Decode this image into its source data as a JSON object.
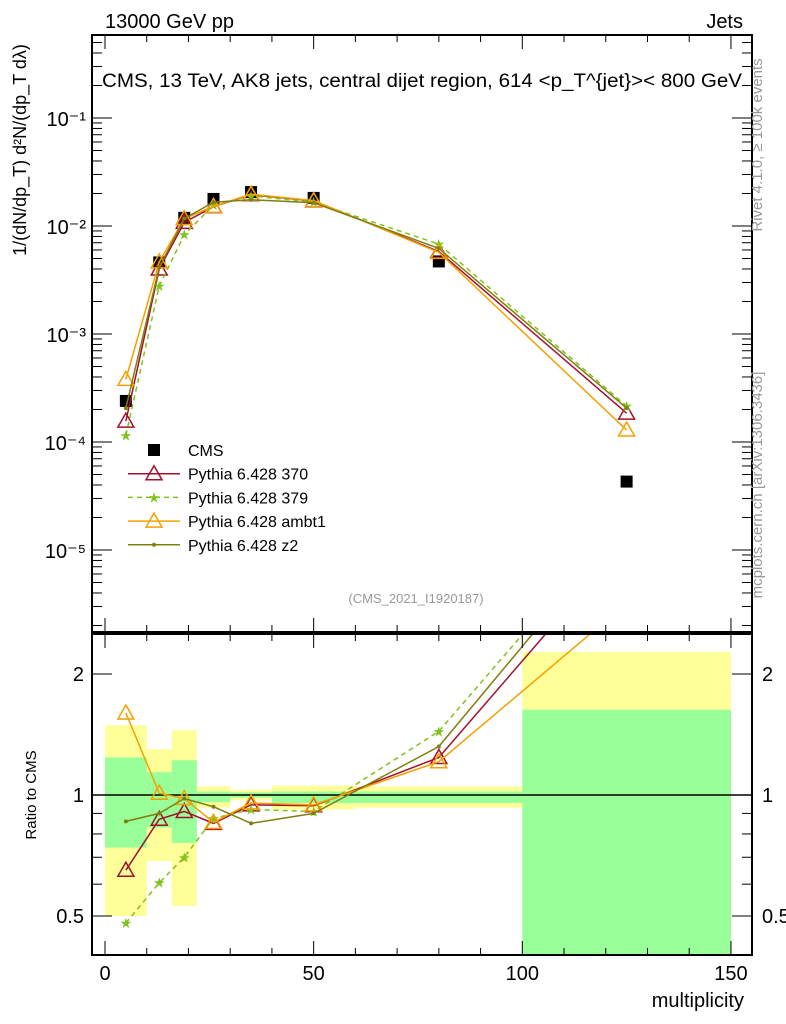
{
  "header": {
    "left": "13000 GeV pp",
    "right": "Jets"
  },
  "side_labels": {
    "rivet": "Rivet 4.1.0, ≥ 100k events",
    "mcplots": "mcplots.cern.ch [arXiv:1306.3436]"
  },
  "analysis_id": "(CMS_2021_I1920187)",
  "chart_data": [
    {
      "type": "line",
      "title": "CMS, 13 TeV, AK8 jets, central dijet region, 614 <p_T^{jet}>< 800 GeV",
      "ylabel": "1/(dN/dp_T) d²N/(dp_T dλ)",
      "yscale": "log",
      "ylim": [
        5.8e-06,
        0.6
      ],
      "ytick_values": [
        0.1,
        0.01,
        0.001,
        0.0001,
        1e-05
      ],
      "ytick_labels": [
        "10⁻¹",
        "10⁻²",
        "10⁻³",
        "10⁻⁴",
        "10⁻⁵"
      ],
      "xlim": [
        -3,
        155
      ],
      "x": [
        5,
        13,
        19,
        26,
        35,
        50,
        80,
        125
      ],
      "legend_position": "bottom-left",
      "series": [
        {
          "name": "CMS",
          "color": "#000000",
          "style": "square",
          "values": [
            0.00024,
            0.0046,
            0.0119,
            0.0178,
            0.0206,
            0.0182,
            0.0047,
            4.3e-05
          ]
        },
        {
          "name": "Pythia 6.428 370",
          "color": "#a3102c",
          "style": "triangle-solid",
          "values": [
            0.000156,
            0.004,
            0.0108,
            0.0151,
            0.0195,
            0.0171,
            0.0058,
            0.000185
          ]
        },
        {
          "name": "Pythia 6.428 379",
          "color": "#7fc31c",
          "style": "star-dashed",
          "values": [
            0.000115,
            0.00278,
            0.0083,
            0.0156,
            0.019,
            0.0166,
            0.0068,
            0.000215
          ]
        },
        {
          "name": "Pythia 6.428 ambt1",
          "color": "#f5a000",
          "style": "triangle-solid",
          "values": [
            0.00038,
            0.00465,
            0.0117,
            0.0152,
            0.0197,
            0.0172,
            0.0057,
            0.000129
          ]
        },
        {
          "name": "Pythia 6.428 z2",
          "color": "#7f7f10",
          "style": "dot-solid",
          "values": [
            0.000206,
            0.00414,
            0.0117,
            0.0166,
            0.0175,
            0.0164,
            0.0062,
            0.000206
          ]
        }
      ]
    },
    {
      "type": "line",
      "ylabel": "Ratio to CMS",
      "xlabel": "multiplicity",
      "yscale": "log",
      "ylim": [
        0.4,
        2.52
      ],
      "ytick_values": [
        0.5,
        1,
        2
      ],
      "ytick_labels": [
        "0.5",
        "1",
        "2"
      ],
      "xtick_values": [
        0,
        50,
        100,
        150
      ],
      "xtick_labels": [
        "0",
        "50",
        "100",
        "150"
      ],
      "bin_edges": [
        0,
        10,
        16,
        22,
        30,
        40,
        60,
        100,
        150
      ],
      "band_inner": {
        "color": "#99ff99",
        "low": [
          0.74,
          0.83,
          0.76,
          0.96,
          0.985,
          0.955,
          0.955,
          0.3
        ],
        "high": [
          1.24,
          1.14,
          1.22,
          1.02,
          1.015,
          1.02,
          1.02,
          1.63
        ]
      },
      "band_outer": {
        "color": "#ffff99",
        "low": [
          0.5,
          0.685,
          0.53,
          0.93,
          0.97,
          0.92,
          0.93,
          0.3
        ],
        "high": [
          1.49,
          1.3,
          1.45,
          1.05,
          1.03,
          1.055,
          1.05,
          2.27
        ]
      },
      "x": [
        5,
        13,
        19,
        26,
        35,
        50,
        80,
        125
      ],
      "series": [
        {
          "name": "Pythia 6.428 370",
          "color": "#a3102c",
          "values": [
            0.65,
            0.87,
            0.91,
            0.85,
            0.945,
            0.94,
            1.24,
            4.3
          ]
        },
        {
          "name": "Pythia 6.428 379",
          "color": "#7fc31c",
          "values": [
            0.48,
            0.605,
            0.7,
            0.875,
            0.92,
            0.91,
            1.44,
            5.0
          ]
        },
        {
          "name": "Pythia 6.428 ambt1",
          "color": "#f5a000",
          "values": [
            1.6,
            1.01,
            0.98,
            0.855,
            0.955,
            0.945,
            1.21,
            3.0
          ]
        },
        {
          "name": "Pythia 6.428 z2",
          "color": "#7f7f10",
          "values": [
            0.86,
            0.9,
            0.98,
            0.935,
            0.85,
            0.9,
            1.32,
            4.8
          ]
        }
      ]
    }
  ]
}
